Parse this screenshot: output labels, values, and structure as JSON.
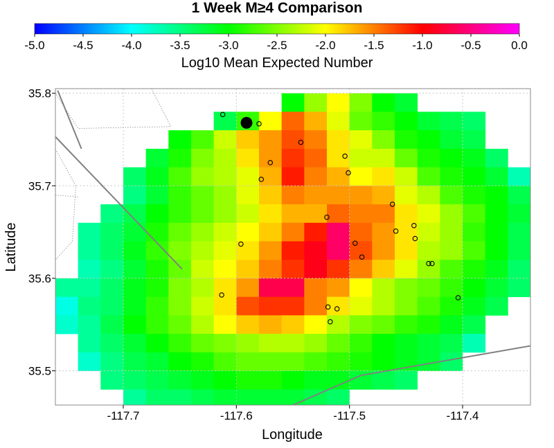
{
  "chart_data": {
    "type": "heatmap",
    "title": "1 Week M≥4 Comparison",
    "colorbar": {
      "label": "Log10 Mean Expected Number",
      "range": [
        -5.0,
        0.0
      ],
      "ticks": [
        "-5.0",
        "-4.5",
        "-4.0",
        "-3.5",
        "-3.0",
        "-2.5",
        "-2.0",
        "-1.5",
        "-1.0",
        "-0.5",
        "0.0"
      ],
      "colormap": "blue-cyan-green-yellow-red-magenta"
    },
    "xlabel": "Longitude",
    "ylabel": "Latitude",
    "xlim": [
      -117.76,
      -117.34
    ],
    "ylim": [
      35.463,
      35.805
    ],
    "xticks": [
      "-117.7",
      "-117.6",
      "-117.5",
      "-117.4"
    ],
    "yticks": [
      "35.8",
      "35.7",
      "35.6",
      "35.5"
    ],
    "grid": true,
    "grid_origin": {
      "lon0": -117.76,
      "lat0": 35.8,
      "dlon": 0.02,
      "dlat": 0.02
    },
    "grid_rows": [
      [
        null,
        null,
        null,
        null,
        null,
        null,
        null,
        null,
        null,
        null,
        -3.0,
        -2.4,
        -2.0,
        -2.5,
        -3.0,
        -3.2,
        null,
        null,
        null,
        null,
        null
      ],
      [
        null,
        null,
        null,
        null,
        null,
        null,
        null,
        -3.3,
        -2.8,
        -2.0,
        -1.4,
        -1.7,
        -2.1,
        -2.6,
        -2.8,
        -3.0,
        -3.2,
        -3.3,
        -3.4,
        null,
        null
      ],
      [
        null,
        null,
        null,
        null,
        null,
        -3.0,
        -2.7,
        -2.2,
        -1.8,
        -1.6,
        -1.3,
        -1.5,
        -1.9,
        -2.1,
        -2.5,
        -2.9,
        -3.0,
        -3.2,
        -3.3,
        null,
        null
      ],
      [
        null,
        null,
        null,
        null,
        -3.2,
        -2.9,
        -2.5,
        -2.3,
        -1.9,
        -1.6,
        -1.2,
        -1.4,
        -1.9,
        -2.2,
        -2.2,
        -2.6,
        -2.9,
        -3.0,
        -3.1,
        -3.4,
        null
      ],
      [
        null,
        null,
        null,
        -3.4,
        -3.1,
        -2.7,
        -2.4,
        -2.3,
        -2.1,
        -1.7,
        -1.1,
        -1.5,
        -1.7,
        -2.0,
        -1.9,
        -2.2,
        -2.7,
        -2.9,
        -3.0,
        -3.2,
        -3.7
      ],
      [
        null,
        null,
        null,
        -3.5,
        -3.2,
        -2.8,
        -2.6,
        -2.4,
        -2.1,
        -1.8,
        -1.5,
        -1.6,
        -1.6,
        -1.6,
        -1.7,
        -2.1,
        -2.3,
        -2.7,
        -2.9,
        -3.0,
        -3.3
      ],
      [
        null,
        null,
        -3.5,
        -3.3,
        -3.0,
        -2.8,
        -2.6,
        -2.4,
        -2.2,
        -1.9,
        -1.7,
        -1.7,
        -1.4,
        -1.5,
        -1.5,
        -1.9,
        -2.1,
        -2.4,
        -2.7,
        -3.0,
        -3.2
      ],
      [
        null,
        -3.6,
        -3.4,
        -3.2,
        -2.9,
        -2.6,
        -2.4,
        -2.2,
        -2.0,
        -1.8,
        -1.5,
        -1.1,
        -0.6,
        -1.4,
        -1.6,
        -1.9,
        -2.2,
        -2.4,
        -2.8,
        -3.0,
        -3.3
      ],
      [
        null,
        -3.6,
        -3.4,
        -3.1,
        -2.8,
        -2.5,
        -2.3,
        -2.1,
        -1.9,
        -1.6,
        -1.1,
        -0.9,
        -0.6,
        -1.3,
        -1.6,
        -1.9,
        -2.3,
        -2.4,
        -2.7,
        -3.0,
        -3.3
      ],
      [
        null,
        -3.7,
        -3.5,
        -3.2,
        -2.9,
        -2.6,
        -2.2,
        -2.0,
        -1.8,
        -1.5,
        -1.2,
        -0.9,
        -1.2,
        -1.5,
        -1.8,
        -2.1,
        -2.4,
        -2.7,
        -2.9,
        -3.1,
        -3.4
      ],
      [
        -3.6,
        -3.6,
        -3.4,
        -3.1,
        -2.9,
        -2.5,
        -2.3,
        -1.9,
        -1.6,
        -0.7,
        -0.7,
        -1.5,
        -1.6,
        -2.0,
        -2.3,
        -2.5,
        -2.6,
        -2.8,
        -3.0,
        -3.2,
        -3.4
      ],
      [
        -3.9,
        -3.5,
        -3.4,
        -3.1,
        -2.8,
        -2.5,
        -2.2,
        -1.9,
        -1.3,
        -1.2,
        -1.2,
        -1.5,
        -1.9,
        -2.1,
        -2.3,
        -2.5,
        -2.7,
        -2.9,
        -3.1,
        -3.3,
        null
      ],
      [
        -3.8,
        -3.6,
        -3.3,
        -3.0,
        -2.8,
        -2.6,
        -2.3,
        -2.0,
        -1.8,
        -1.7,
        -1.8,
        -2.0,
        -2.3,
        -2.5,
        -2.6,
        -2.8,
        -2.9,
        -3.1,
        -3.3,
        null,
        null
      ],
      [
        null,
        -3.6,
        -3.4,
        -3.2,
        -3.0,
        -2.8,
        -2.6,
        -2.5,
        -2.4,
        -2.3,
        -2.3,
        -2.4,
        -2.6,
        -2.8,
        -3.0,
        -3.1,
        -3.2,
        -3.3,
        -3.7,
        null,
        null
      ],
      [
        null,
        -3.8,
        -3.5,
        -3.3,
        -3.2,
        -3.0,
        -2.9,
        -2.7,
        -2.6,
        -2.6,
        -2.6,
        -2.7,
        -2.8,
        -2.9,
        -3.0,
        -3.1,
        -3.2,
        -3.4,
        null,
        null,
        null
      ],
      [
        null,
        null,
        -3.5,
        -3.4,
        -3.3,
        -3.2,
        -3.1,
        -3.0,
        -2.9,
        -2.9,
        -3.0,
        -3.1,
        -3.1,
        -3.2,
        -3.3,
        -3.4,
        null,
        null,
        null,
        null,
        null
      ],
      [
        null,
        null,
        null,
        -3.6,
        -3.4,
        -3.4,
        -3.3,
        -3.2,
        -3.2,
        -3.2,
        -3.2,
        -3.3,
        -3.4,
        null,
        null,
        null,
        null,
        null,
        null,
        null,
        null
      ],
      [
        null,
        null,
        null,
        null,
        null,
        -3.7,
        -3.5,
        -3.3,
        -3.2,
        -3.2,
        -3.3,
        -3.4,
        -3.4,
        null,
        null,
        null,
        null,
        null,
        null,
        null,
        null
      ]
    ],
    "events_small": [
      [
        -117.612,
        35.777
      ],
      [
        -117.58,
        35.767
      ],
      [
        -117.543,
        35.747
      ],
      [
        -117.57,
        35.725
      ],
      [
        -117.578,
        35.707
      ],
      [
        -117.504,
        35.732
      ],
      [
        -117.501,
        35.714
      ],
      [
        -117.462,
        35.68
      ],
      [
        -117.52,
        35.666
      ],
      [
        -117.459,
        35.651
      ],
      [
        -117.443,
        35.657
      ],
      [
        -117.442,
        35.643
      ],
      [
        -117.596,
        35.637
      ],
      [
        -117.495,
        35.638
      ],
      [
        -117.489,
        35.623
      ],
      [
        -117.43,
        35.616
      ],
      [
        -117.427,
        35.616
      ],
      [
        -117.613,
        35.582
      ],
      [
        -117.404,
        35.579
      ],
      [
        -117.519,
        35.569
      ],
      [
        -117.511,
        35.567
      ],
      [
        -117.517,
        35.553
      ]
    ],
    "event_large": [
      -117.591,
      35.768
    ],
    "faults": [
      [
        [
          -117.758,
          35.803
        ],
        [
          -117.737,
          35.74
        ]
      ],
      [
        [
          -117.76,
          35.753
        ],
        [
          -117.648,
          35.61
        ]
      ],
      [
        [
          -117.55,
          35.463
        ],
        [
          -117.49,
          35.495
        ],
        [
          -117.34,
          35.527
        ]
      ]
    ],
    "borders": [
      [
        [
          -117.675,
          35.805
        ],
        [
          -117.658,
          35.764
        ],
        [
          -117.74,
          35.762
        ],
        [
          -117.76,
          35.8
        ]
      ],
      [
        [
          -117.76,
          35.74
        ],
        [
          -117.742,
          35.7
        ],
        [
          -117.745,
          35.64
        ],
        [
          -117.76,
          35.62
        ]
      ],
      [
        [
          -117.76,
          35.69
        ],
        [
          -117.74,
          35.688
        ]
      ]
    ]
  }
}
